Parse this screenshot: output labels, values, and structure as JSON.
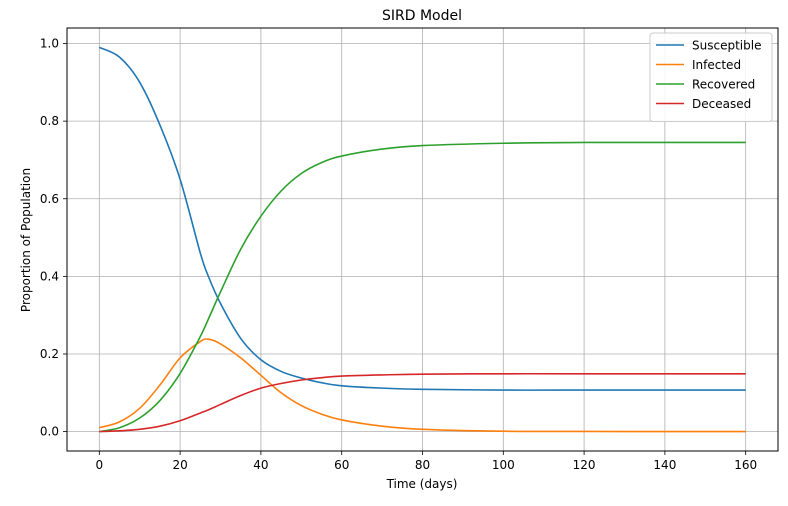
{
  "chart_data": {
    "type": "line",
    "title": "SIRD Model",
    "xlabel": "Time (days)",
    "ylabel": "Proportion of Population",
    "xlim": [
      -8,
      168
    ],
    "ylim": [
      -0.05,
      1.04
    ],
    "xticks": [
      0,
      20,
      40,
      60,
      80,
      100,
      120,
      140,
      160
    ],
    "yticks": [
      0.0,
      0.2,
      0.4,
      0.6,
      0.8,
      1.0
    ],
    "xtick_labels": [
      "0",
      "20",
      "40",
      "60",
      "80",
      "100",
      "120",
      "140",
      "160"
    ],
    "ytick_labels": [
      "0.0",
      "0.2",
      "0.4",
      "0.6",
      "0.8",
      "1.0"
    ],
    "grid": true,
    "legend_position": "top-right",
    "x": [
      0,
      5,
      10,
      15,
      20,
      25,
      27,
      30,
      35,
      40,
      45,
      50,
      55,
      60,
      70,
      80,
      100,
      120,
      140,
      160
    ],
    "series": [
      {
        "name": "Susceptible",
        "color": "#1f77b4",
        "values": [
          0.99,
          0.965,
          0.9,
          0.79,
          0.65,
          0.46,
          0.4,
          0.33,
          0.24,
          0.185,
          0.155,
          0.138,
          0.126,
          0.118,
          0.112,
          0.109,
          0.107,
          0.107,
          0.107,
          0.107
        ]
      },
      {
        "name": "Infected",
        "color": "#ff7f0e",
        "values": [
          0.01,
          0.025,
          0.06,
          0.12,
          0.19,
          0.232,
          0.238,
          0.226,
          0.19,
          0.145,
          0.1,
          0.067,
          0.045,
          0.03,
          0.014,
          0.006,
          0.001,
          0.0003,
          0.0001,
          0.0
        ]
      },
      {
        "name": "Recovered",
        "color": "#2ca02c",
        "values": [
          0.0,
          0.01,
          0.035,
          0.08,
          0.15,
          0.245,
          0.29,
          0.36,
          0.47,
          0.555,
          0.62,
          0.665,
          0.693,
          0.71,
          0.728,
          0.737,
          0.743,
          0.745,
          0.745,
          0.745
        ]
      },
      {
        "name": "Deceased",
        "color": "#d62728",
        "values": [
          0.0,
          0.002,
          0.006,
          0.014,
          0.028,
          0.048,
          0.056,
          0.07,
          0.093,
          0.112,
          0.124,
          0.133,
          0.139,
          0.143,
          0.146,
          0.148,
          0.149,
          0.149,
          0.149,
          0.149
        ]
      }
    ]
  }
}
